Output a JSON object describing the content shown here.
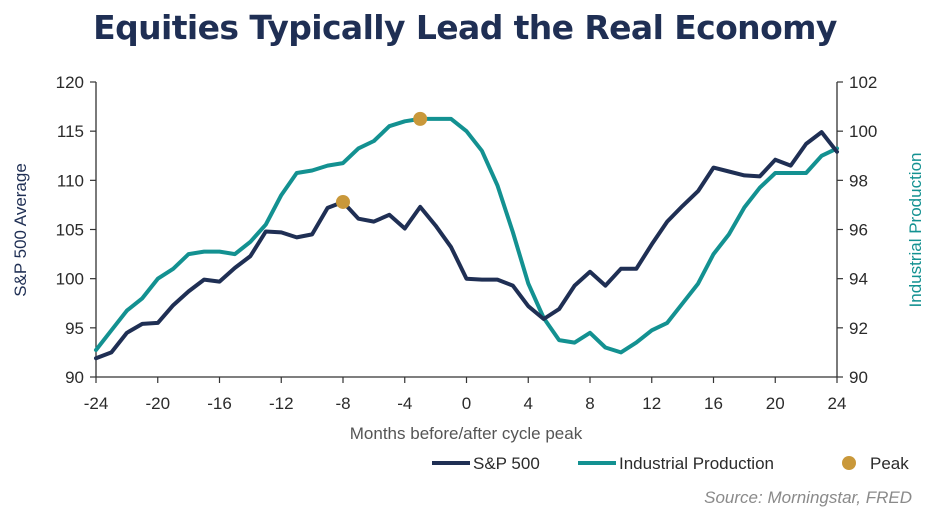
{
  "chart_data": {
    "type": "line",
    "title": "Equities Typically Lead the Real Economy",
    "xlabel": "Months before/after cycle peak",
    "ylabel_left": "S&P 500 Average",
    "ylabel_right": "Industrial Production",
    "x_ticks": [
      "-24",
      "-20",
      "-16",
      "-12",
      "-8",
      "-4",
      "0",
      "4",
      "8",
      "12",
      "16",
      "20",
      "24"
    ],
    "y_left_ticks": [
      "90",
      "95",
      "100",
      "105",
      "110",
      "115",
      "120"
    ],
    "y_right_ticks": [
      "90",
      "92",
      "94",
      "96",
      "98",
      "100",
      "102"
    ],
    "xlim": [
      -24,
      24
    ],
    "ylim_left": [
      90,
      120
    ],
    "ylim_right": [
      90,
      102
    ],
    "x": [
      -24,
      -23,
      -22,
      -21,
      -20,
      -19,
      -18,
      -17,
      -16,
      -15,
      -14,
      -13,
      -12,
      -11,
      -10,
      -9,
      -8,
      -7,
      -6,
      -5,
      -4,
      -3,
      -2,
      -1,
      0,
      1,
      2,
      3,
      4,
      5,
      6,
      7,
      8,
      9,
      10,
      11,
      12,
      13,
      14,
      15,
      16,
      17,
      18,
      19,
      20,
      21,
      22,
      23,
      24
    ],
    "series": [
      {
        "name": "S&P 500",
        "axis": "left",
        "color": "#1f2f54",
        "values": [
          91.9,
          92.5,
          94.5,
          95.4,
          95.5,
          97.3,
          98.7,
          99.9,
          99.7,
          101.1,
          102.3,
          104.8,
          104.7,
          104.2,
          104.5,
          107.2,
          107.8,
          106.1,
          105.8,
          106.5,
          105.1,
          107.3,
          105.4,
          103.2,
          100.0,
          99.9,
          99.9,
          99.3,
          97.2,
          95.9,
          96.9,
          99.3,
          100.7,
          99.3,
          101.0,
          101.0,
          103.5,
          105.8,
          107.4,
          108.9,
          111.3,
          110.9,
          110.5,
          110.4,
          112.1,
          111.5,
          113.7,
          114.9,
          112.9
        ]
      },
      {
        "name": "Industrial Production",
        "axis": "right",
        "color": "#139191",
        "values": [
          91.1,
          91.9,
          92.7,
          93.2,
          94.0,
          94.4,
          95.0,
          95.1,
          95.1,
          95.0,
          95.5,
          96.2,
          97.4,
          98.3,
          98.4,
          98.6,
          98.7,
          99.3,
          99.6,
          100.2,
          100.4,
          100.5,
          100.5,
          100.5,
          100.0,
          99.2,
          97.8,
          95.9,
          93.8,
          92.4,
          91.5,
          91.4,
          91.8,
          91.2,
          91.0,
          91.4,
          91.9,
          92.2,
          93.0,
          93.8,
          95.0,
          95.8,
          96.9,
          97.7,
          98.3,
          98.3,
          98.3,
          99.0,
          99.3
        ]
      }
    ],
    "peaks": [
      {
        "series": "S&P 500",
        "x": -8,
        "y": 107.8
      },
      {
        "series": "Industrial Production",
        "x": -3,
        "y": 100.5
      }
    ],
    "peak_color": "#c9983a",
    "legend": [
      {
        "label": "S&P 500",
        "kind": "line",
        "color": "#1f2f54"
      },
      {
        "label": "Industrial Production",
        "kind": "line",
        "color": "#139191"
      },
      {
        "label": "Peak",
        "kind": "marker",
        "color": "#c9983a"
      }
    ],
    "legend_position": "bottom-right",
    "source": "Source: Morningstar, FRED",
    "grid": false
  }
}
